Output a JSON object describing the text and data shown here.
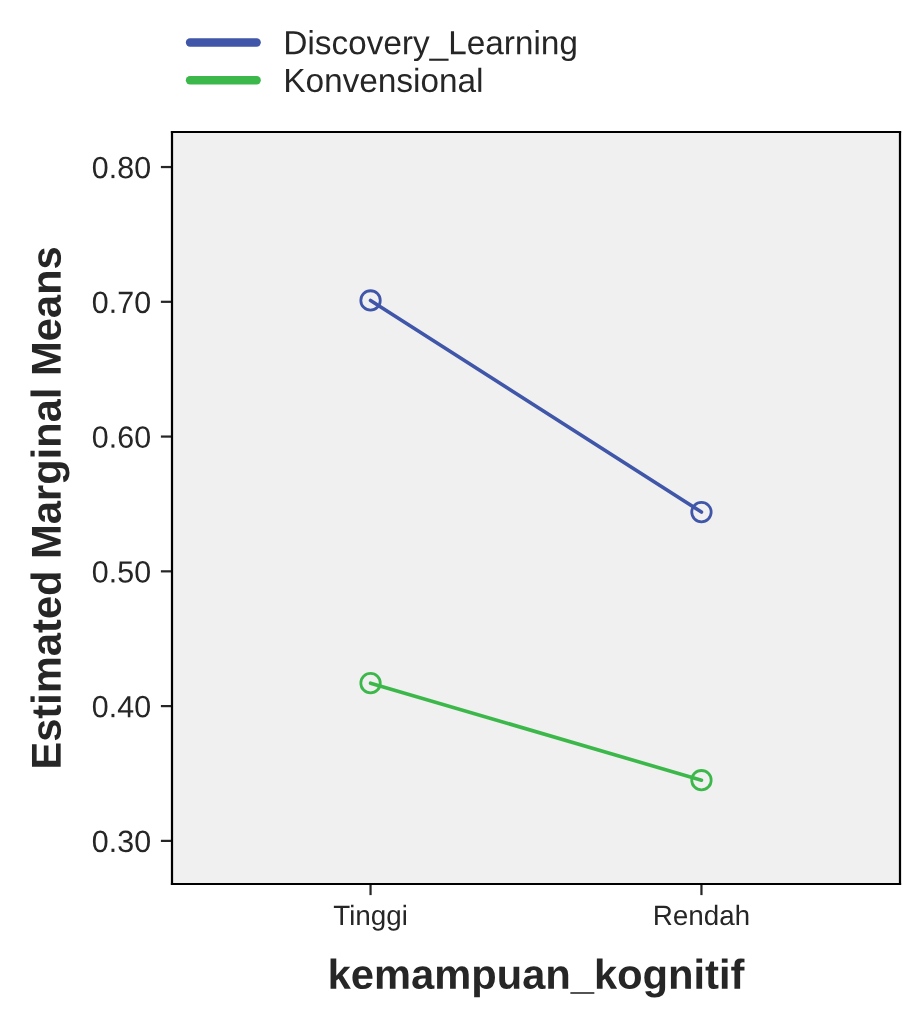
{
  "chart_data": {
    "type": "line",
    "xlabel": "kemampuan_kognitif",
    "ylabel": "Estimated Marginal Means",
    "categories": [
      "Tinggi",
      "Rendah"
    ],
    "series": [
      {
        "name": "Discovery_Learning",
        "color": "#4056a8",
        "values": [
          0.701,
          0.544
        ]
      },
      {
        "name": "Konvensional",
        "color": "#3cb84a",
        "values": [
          0.417,
          0.345
        ]
      }
    ],
    "ylim": [
      0.268,
      0.826
    ],
    "yticks": [
      {
        "value": 0.3,
        "label": "0.30"
      },
      {
        "value": 0.4,
        "label": "0.40"
      },
      {
        "value": 0.5,
        "label": "0.50"
      },
      {
        "value": 0.6,
        "label": "0.60"
      },
      {
        "value": 0.7,
        "label": "0.70"
      },
      {
        "value": 0.8,
        "label": "0.80"
      }
    ],
    "marker": "circle",
    "line_style": "solid",
    "legend": "top left",
    "grid": false
  }
}
